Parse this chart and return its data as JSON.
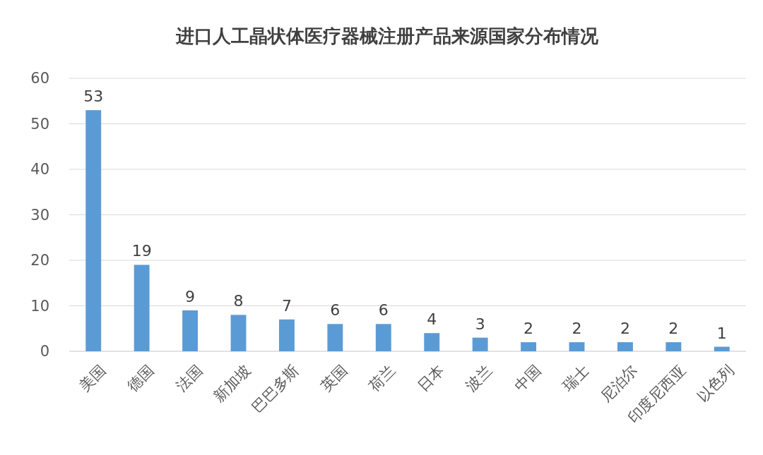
{
  "chart_data": {
    "type": "bar",
    "title": "进口人工晶状体医疗器械注册产品来源国家分布情况",
    "categories": [
      "美国",
      "德国",
      "法国",
      "新加坡",
      "巴巴多斯",
      "英国",
      "荷兰",
      "日本",
      "波兰",
      "中国",
      "瑞士",
      "尼泊尔",
      "印度尼西亚",
      "以色列"
    ],
    "values": [
      53,
      19,
      9,
      8,
      7,
      6,
      6,
      4,
      3,
      2,
      2,
      2,
      2,
      1
    ],
    "color": "#5b9bd5",
    "ylim": [
      0,
      60
    ],
    "yticks": [
      0,
      10,
      20,
      30,
      40,
      50,
      60
    ],
    "grid": "y",
    "data_labels": true
  }
}
